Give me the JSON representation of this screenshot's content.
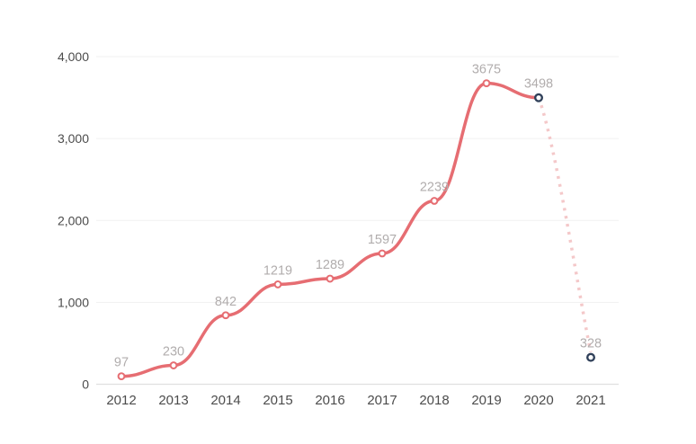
{
  "chart_data": {
    "type": "line",
    "title": "",
    "xlabel": "",
    "ylabel": "",
    "legend": "none",
    "grid": "horizontal",
    "categories": [
      "2012",
      "2013",
      "2014",
      "2015",
      "2016",
      "2017",
      "2018",
      "2019",
      "2020",
      "2021"
    ],
    "values": [
      97,
      230,
      842,
      1219,
      1289,
      1597,
      2239,
      3675,
      3498,
      328
    ],
    "data_labels": [
      "97",
      "230",
      "842",
      "1219",
      "1289",
      "1597",
      "2239",
      "3675",
      "3498",
      "328"
    ],
    "solid_until_index": 8,
    "projected_segment": {
      "from": "2020",
      "to": "2021",
      "style": "dotted"
    },
    "dark_marker_indices": [
      8,
      9
    ],
    "ylim": [
      0,
      4000
    ],
    "y_tick_values": [
      0,
      1000,
      2000,
      3000,
      4000
    ],
    "y_tick_labels": [
      "0",
      "1,000",
      "2,000",
      "3,000",
      "4,000"
    ],
    "colors": {
      "line": "#e66d72",
      "projected_line": "#f4c8c9",
      "marker_fill": "#ffffff",
      "marker_stroke": "#e66d72",
      "dark_marker_stroke": "#31415a",
      "data_label": "#b1adad",
      "tick_label": "#4c4c4c",
      "gridline": "#f1f1f1",
      "axis_line": "#e0e0e0",
      "background": "#ffffff"
    }
  }
}
